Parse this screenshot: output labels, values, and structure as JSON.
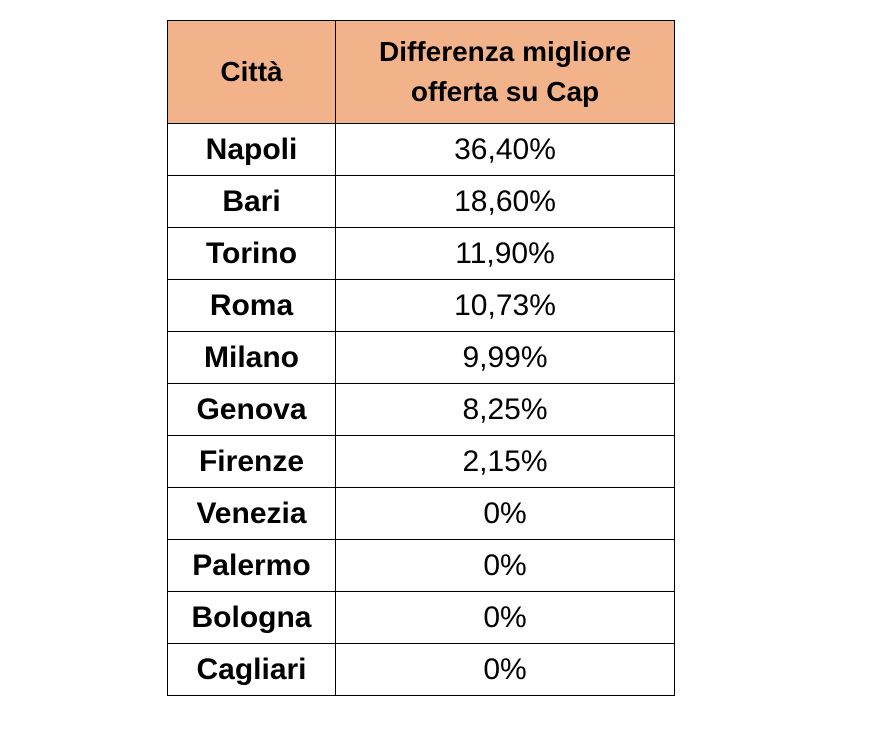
{
  "table": {
    "header": {
      "city": "Città",
      "difference": "Differenza migliore offerta su Cap"
    },
    "header_color": "#f2b38b",
    "rows": [
      {
        "city": "Napoli",
        "value": "36,40%"
      },
      {
        "city": "Bari",
        "value": "18,60%"
      },
      {
        "city": "Torino",
        "value": "11,90%"
      },
      {
        "city": "Roma",
        "value": "10,73%"
      },
      {
        "city": "Milano",
        "value": "9,99%"
      },
      {
        "city": "Genova",
        "value": "8,25%"
      },
      {
        "city": "Firenze",
        "value": "2,15%"
      },
      {
        "city": "Venezia",
        "value": "0%"
      },
      {
        "city": "Palermo",
        "value": "0%"
      },
      {
        "city": "Bologna",
        "value": "0%"
      },
      {
        "city": "Cagliari",
        "value": "0%"
      }
    ]
  }
}
